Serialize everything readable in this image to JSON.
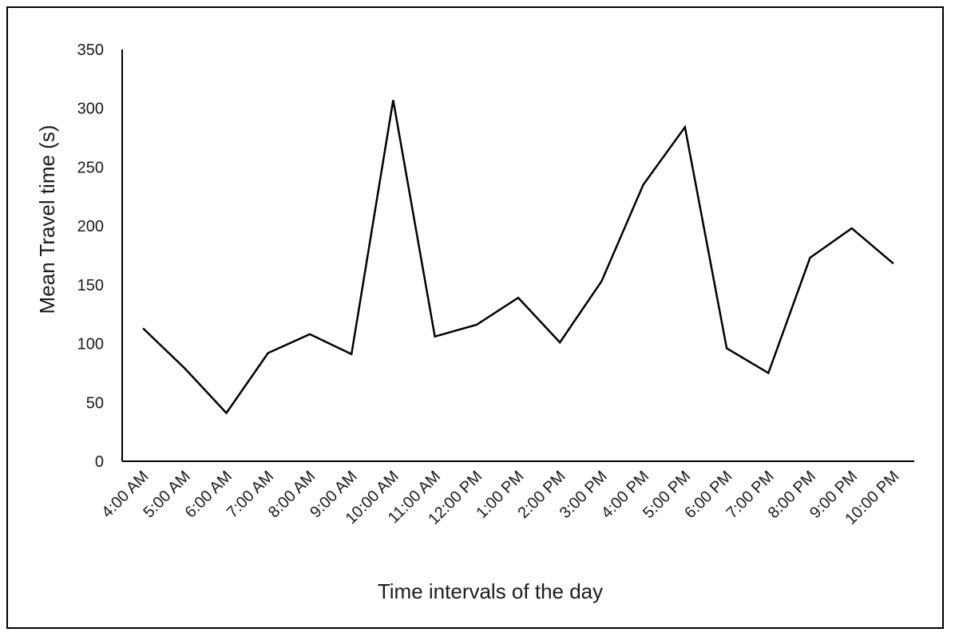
{
  "chart_data": {
    "type": "line",
    "xlabel": "Time intervals of the day",
    "ylabel": "Mean Travel time (s)",
    "ylim": [
      0,
      350
    ],
    "yticks": [
      0,
      50,
      100,
      150,
      200,
      250,
      300,
      350
    ],
    "categories": [
      "4:00 AM",
      "5:00 AM",
      "6:00 AM",
      "7:00 AM",
      "8:00 AM",
      "9:00 AM",
      "10:00 AM",
      "11:00 AM",
      "12:00 PM",
      "1:00 PM",
      "2:00 PM",
      "3:00 PM",
      "4:00 PM",
      "5:00 PM",
      "6:00 PM",
      "7:00 PM",
      "8:00 PM",
      "9:00 PM",
      "10:00 PM"
    ],
    "series": [
      {
        "values": [
          113,
          79,
          41,
          92,
          108,
          91,
          307,
          106,
          116,
          139,
          101,
          153,
          235,
          284,
          96,
          75,
          173,
          198,
          168
        ]
      }
    ],
    "grid": false,
    "line_color": "#000000"
  }
}
